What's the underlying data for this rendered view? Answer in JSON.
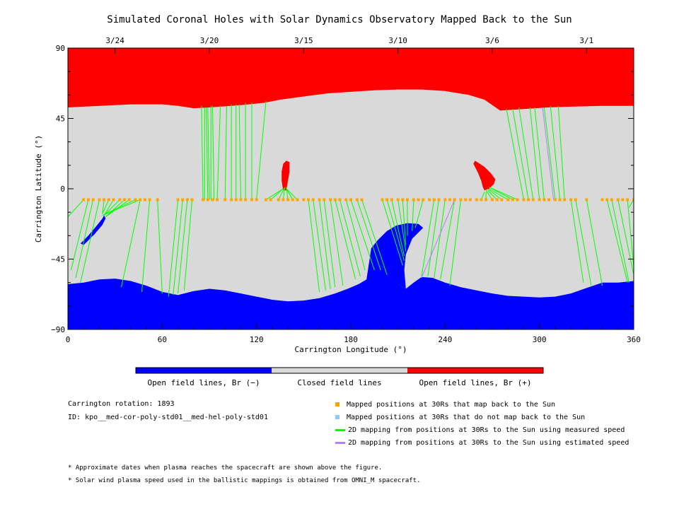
{
  "chart_data": {
    "type": "map",
    "title": "Simulated Coronal Holes with Solar Dynamics Observatory Mapped Back to the Sun",
    "xlabel": "Carrington Longitude (°)",
    "ylabel": "Carrington Latitude (°)",
    "xlim": [
      0,
      360
    ],
    "ylim": [
      -90,
      90
    ],
    "x_ticks": [
      0,
      60,
      120,
      180,
      240,
      300,
      360
    ],
    "y_ticks": [
      -90,
      -45,
      0,
      45,
      90
    ],
    "top_axis_dates": [
      {
        "label": "3/24",
        "lon": 30
      },
      {
        "label": "3/20",
        "lon": 90
      },
      {
        "label": "3/15",
        "lon": 150
      },
      {
        "label": "3/10",
        "lon": 210
      },
      {
        "label": "3/6",
        "lon": 270
      },
      {
        "label": "3/1",
        "lon": 330
      }
    ],
    "north_boundary": [
      [
        0,
        52
      ],
      [
        20,
        53
      ],
      [
        40,
        54
      ],
      [
        60,
        54
      ],
      [
        70,
        53
      ],
      [
        80,
        51.5
      ],
      [
        90,
        52
      ],
      [
        110,
        53.5
      ],
      [
        125,
        55
      ],
      [
        135,
        57
      ],
      [
        150,
        59
      ],
      [
        165,
        61
      ],
      [
        180,
        62
      ],
      [
        195,
        63
      ],
      [
        210,
        63.5
      ],
      [
        225,
        63.5
      ],
      [
        240,
        62.5
      ],
      [
        255,
        60
      ],
      [
        265,
        57
      ],
      [
        275,
        50
      ],
      [
        290,
        51
      ],
      [
        305,
        52
      ],
      [
        320,
        52.5
      ],
      [
        340,
        53
      ],
      [
        360,
        53
      ]
    ],
    "south_boundary": [
      [
        0,
        -61
      ],
      [
        10,
        -60
      ],
      [
        20,
        -58
      ],
      [
        30,
        -57.5
      ],
      [
        40,
        -59
      ],
      [
        50,
        -62
      ],
      [
        60,
        -66
      ],
      [
        70,
        -68
      ],
      [
        80,
        -65.5
      ],
      [
        90,
        -64
      ],
      [
        100,
        -65
      ],
      [
        110,
        -67
      ],
      [
        120,
        -69
      ],
      [
        130,
        -71
      ],
      [
        140,
        -72
      ],
      [
        150,
        -71.5
      ],
      [
        160,
        -70
      ],
      [
        170,
        -67
      ],
      [
        178,
        -64
      ],
      [
        185,
        -61
      ],
      [
        190,
        -58
      ],
      [
        195,
        -58
      ],
      [
        205,
        -58
      ],
      [
        210,
        -61
      ],
      [
        215,
        -64
      ],
      [
        220,
        -60
      ],
      [
        225,
        -56.5
      ],
      [
        232,
        -57
      ],
      [
        240,
        -60
      ],
      [
        250,
        -63
      ],
      [
        260,
        -65
      ],
      [
        270,
        -67
      ],
      [
        280,
        -68.5
      ],
      [
        290,
        -69
      ],
      [
        300,
        -69.5
      ],
      [
        310,
        -69
      ],
      [
        320,
        -67
      ],
      [
        330,
        -63.5
      ],
      [
        340,
        -60
      ],
      [
        350,
        -60
      ],
      [
        360,
        -59
      ]
    ],
    "south_tongue": [
      [
        190,
        -58
      ],
      [
        193,
        -38
      ],
      [
        197,
        -33
      ],
      [
        203,
        -27
      ],
      [
        209,
        -23.5
      ],
      [
        216,
        -22
      ],
      [
        223,
        -22.5
      ],
      [
        226,
        -25
      ],
      [
        219,
        -32
      ],
      [
        215,
        -42
      ],
      [
        214,
        -52
      ],
      [
        215,
        -64
      ],
      [
        210,
        -61
      ]
    ],
    "open_regions": [
      {
        "polarity": "Br (+)",
        "points": [
          [
            137,
            -1
          ],
          [
            136,
            5
          ],
          [
            136,
            11
          ],
          [
            137,
            16
          ],
          [
            139,
            18
          ],
          [
            141,
            17
          ],
          [
            141,
            11
          ],
          [
            140,
            5
          ],
          [
            139,
            -1
          ]
        ]
      },
      {
        "polarity": "Br (+)",
        "points": [
          [
            259,
            18
          ],
          [
            258,
            16
          ],
          [
            261,
            10
          ],
          [
            263,
            5
          ],
          [
            264,
            1
          ],
          [
            265,
            -1
          ],
          [
            268,
            0
          ],
          [
            271,
            3
          ],
          [
            272,
            6
          ],
          [
            269,
            10
          ],
          [
            265,
            14
          ]
        ]
      },
      {
        "polarity": "Br (-)",
        "points": [
          [
            8,
            -35
          ],
          [
            10,
            -33
          ],
          [
            13,
            -30
          ],
          [
            18,
            -24
          ],
          [
            22,
            -19
          ],
          [
            23,
            -17
          ],
          [
            24,
            -19
          ],
          [
            22,
            -23
          ],
          [
            17,
            -29
          ],
          [
            13,
            -33
          ],
          [
            10,
            -36
          ]
        ]
      }
    ],
    "mapped_latitude": -7,
    "mapped_points_lon": [
      10,
      13,
      16,
      20,
      23,
      26,
      29,
      33,
      36,
      39,
      43,
      46,
      49,
      52,
      57,
      70,
      73,
      76,
      79,
      86,
      89,
      92,
      95,
      100,
      104,
      107,
      110,
      113,
      117,
      120,
      126,
      129,
      134,
      137,
      140,
      143,
      146,
      150,
      153,
      156,
      160,
      163,
      167,
      170,
      173,
      177,
      180,
      184,
      187,
      200,
      203,
      206,
      210,
      213,
      216,
      220,
      223,
      226,
      230,
      233,
      236,
      240,
      243,
      246,
      250,
      253,
      256,
      260,
      263,
      266,
      270,
      273,
      276,
      280,
      283,
      286,
      290,
      293,
      296,
      300,
      303,
      306,
      310,
      313,
      316,
      320,
      323,
      330,
      340,
      343,
      346,
      350,
      353,
      356,
      360
    ],
    "green_lines": [
      [
        10,
        -7,
        0,
        -18
      ],
      [
        13,
        -7,
        2,
        -52
      ],
      [
        16,
        -7,
        5,
        -57
      ],
      [
        20,
        -7,
        8,
        -60
      ],
      [
        23,
        -7,
        22,
        -16
      ],
      [
        26,
        -7,
        22,
        -16
      ],
      [
        29,
        -7,
        23,
        -17
      ],
      [
        33,
        -7,
        23,
        -17
      ],
      [
        36,
        -7,
        24,
        -18
      ],
      [
        39,
        -7,
        24,
        -18
      ],
      [
        43,
        -7,
        22,
        -17
      ],
      [
        46,
        -7,
        22,
        -17
      ],
      [
        46,
        -7,
        34,
        -63
      ],
      [
        52,
        -7,
        47,
        -66
      ],
      [
        57,
        -7,
        60,
        -67
      ],
      [
        70,
        -7,
        64,
        -69
      ],
      [
        73,
        -7,
        67,
        -68
      ],
      [
        76,
        -7,
        70,
        -67
      ],
      [
        79,
        -7,
        74,
        -65
      ],
      [
        86,
        -7,
        85,
        53
      ],
      [
        87,
        -7,
        87,
        52
      ],
      [
        89,
        -7,
        88,
        52
      ],
      [
        90,
        -7,
        89,
        52
      ],
      [
        91,
        -7,
        91,
        53
      ],
      [
        93,
        -7,
        92,
        53
      ],
      [
        95,
        -7,
        97,
        53
      ],
      [
        100,
        -7,
        101,
        53
      ],
      [
        104,
        -7,
        104,
        54
      ],
      [
        107,
        -7,
        107,
        54
      ],
      [
        110,
        -7,
        109,
        54
      ],
      [
        113,
        -7,
        113,
        55
      ],
      [
        117,
        -7,
        117,
        55
      ],
      [
        120,
        -7,
        126,
        56
      ],
      [
        126,
        -7,
        137,
        0
      ],
      [
        129,
        -7,
        137,
        0
      ],
      [
        134,
        -7,
        138,
        1
      ],
      [
        137,
        -7,
        138,
        1
      ],
      [
        140,
        -7,
        139,
        1
      ],
      [
        143,
        -7,
        139,
        0
      ],
      [
        146,
        -7,
        139,
        0
      ],
      [
        153,
        -7,
        160,
        -66
      ],
      [
        156,
        -7,
        164,
        -65
      ],
      [
        160,
        -7,
        167,
        -64
      ],
      [
        163,
        -7,
        170,
        -63
      ],
      [
        167,
        -7,
        175,
        -62
      ],
      [
        170,
        -7,
        183,
        -58
      ],
      [
        173,
        -7,
        186,
        -56
      ],
      [
        177,
        -7,
        189,
        -52
      ],
      [
        180,
        -7,
        195,
        -52
      ],
      [
        184,
        -7,
        199,
        -52
      ],
      [
        187,
        -7,
        203,
        -55
      ],
      [
        200,
        -7,
        213,
        -49
      ],
      [
        203,
        -7,
        214,
        -46
      ],
      [
        206,
        -7,
        214,
        -43
      ],
      [
        210,
        -7,
        215,
        -40
      ],
      [
        213,
        -7,
        215,
        -36
      ],
      [
        216,
        -7,
        216,
        -30
      ],
      [
        220,
        -7,
        219,
        -27
      ],
      [
        226,
        -7,
        221,
        -25
      ],
      [
        233,
        -7,
        225,
        -56
      ],
      [
        236,
        -7,
        229,
        -56
      ],
      [
        240,
        -7,
        233,
        -57
      ],
      [
        246,
        -7,
        237,
        -58
      ],
      [
        250,
        -7,
        243,
        -62
      ],
      [
        263,
        -7,
        265,
        -2
      ],
      [
        266,
        -7,
        266,
        -2
      ],
      [
        270,
        -7,
        266,
        -1
      ],
      [
        273,
        -7,
        267,
        -1
      ],
      [
        276,
        -7,
        267,
        0
      ],
      [
        280,
        -7,
        268,
        0
      ],
      [
        283,
        -7,
        268,
        1
      ],
      [
        286,
        -7,
        268,
        1
      ],
      [
        290,
        -7,
        279,
        51
      ],
      [
        293,
        -7,
        283,
        51
      ],
      [
        296,
        -7,
        287,
        52
      ],
      [
        300,
        -7,
        294,
        52
      ],
      [
        303,
        -7,
        297,
        52
      ],
      [
        310,
        -7,
        303,
        52
      ],
      [
        313,
        -7,
        307,
        53
      ],
      [
        316,
        -7,
        312,
        53
      ],
      [
        320,
        -7,
        328,
        -60
      ],
      [
        323,
        -7,
        333,
        -62
      ],
      [
        330,
        -7,
        340,
        -62
      ],
      [
        343,
        -7,
        356,
        -60
      ],
      [
        346,
        -7,
        357,
        -60
      ],
      [
        350,
        -7,
        360,
        -55
      ],
      [
        356,
        -7,
        360,
        -50
      ],
      [
        360,
        -7,
        357,
        -12
      ]
    ],
    "purple_lines": [
      [
        246,
        -7,
        225,
        -57
      ],
      [
        309,
        -7,
        302,
        52
      ]
    ],
    "colorbar": [
      "Open field lines, Br (−)",
      "Closed field lines",
      "Open field lines, Br (+)"
    ],
    "legend": [
      {
        "label": "Mapped positions at 30Rs that map back to the Sun",
        "color": "#ffa500",
        "kind": "square"
      },
      {
        "label": "Mapped positions at 30Rs that do not map back to the Sun",
        "color": "#87cefa",
        "kind": "square"
      },
      {
        "label": "2D mapping from positions at 30Rs to the Sun using measured speed",
        "color": "#00ff00",
        "kind": "line"
      },
      {
        "label": "2D mapping from positions at 30Rs to the Sun using estimated speed",
        "color": "#b480ff",
        "kind": "line"
      }
    ],
    "colors": {
      "positive": "#ff0000",
      "negative": "#0000ff",
      "closed": "#d9d9d9",
      "green": "#00ff00",
      "purple": "#b480ff",
      "mapped": "#ffa500",
      "unmapped": "#87cefa"
    }
  },
  "info": {
    "rotation": "Carrington rotation: 1893",
    "id": "ID: kpo__med-cor-poly-std01__med-hel-poly-std01"
  },
  "notes": [
    "* Approximate dates when plasma reaches the spacecraft are shown above the figure.",
    "* Solar wind plasma speed used in the ballistic mappings is obtained from OMNI_M spacecraft."
  ]
}
